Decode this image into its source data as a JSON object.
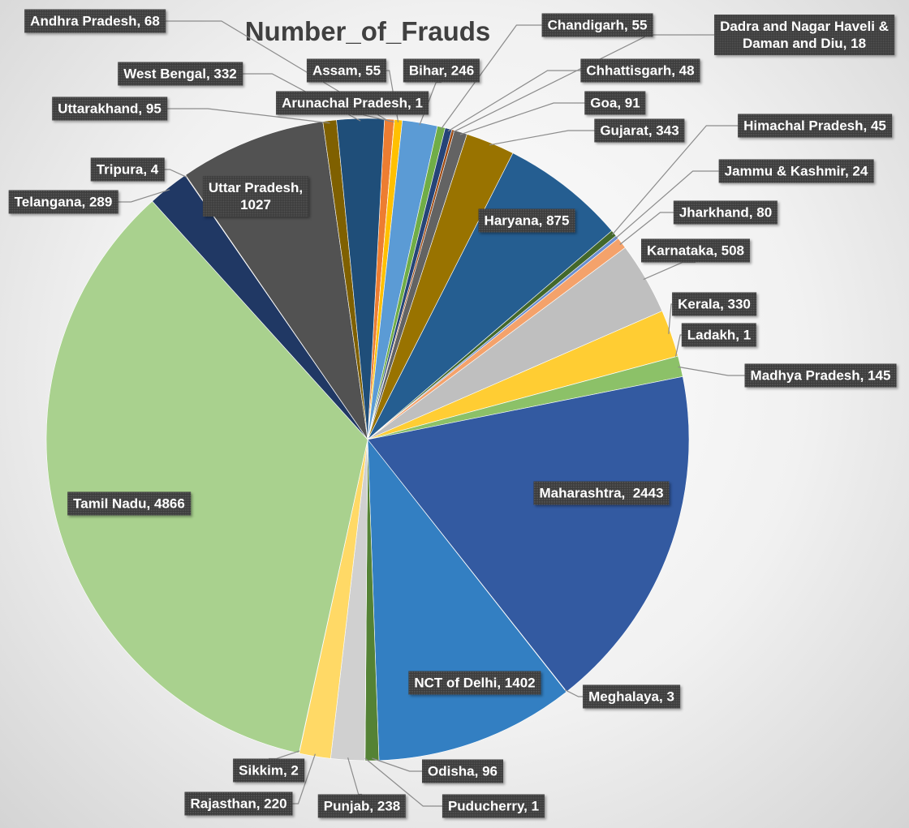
{
  "chart_data": {
    "type": "pie",
    "title": "Number_of_Frauds",
    "start_angle_deg": 3,
    "slices": [
      {
        "label": "Andhra Pradesh",
        "value": 68,
        "color": "#ED7D31"
      },
      {
        "label": "Arunachal Pradesh",
        "value": 1,
        "color": "#A5A5A5"
      },
      {
        "label": "Assam",
        "value": 55,
        "color": "#FFC000"
      },
      {
        "label": "Bihar",
        "value": 246,
        "color": "#5B9BD5"
      },
      {
        "label": "Chandigarh",
        "value": 55,
        "color": "#70AD47"
      },
      {
        "label": "Chhattisgarh",
        "value": 48,
        "color": "#264478"
      },
      {
        "label": "Dadra and Nagar Haveli & Daman and Diu",
        "value": 18,
        "color": "#9E480E"
      },
      {
        "label": "Goa",
        "value": 91,
        "color": "#636363"
      },
      {
        "label": "Gujarat",
        "value": 343,
        "color": "#997300"
      },
      {
        "label": "Haryana",
        "value": 875,
        "color": "#255E91"
      },
      {
        "label": "Himachal Pradesh",
        "value": 45,
        "color": "#43682B"
      },
      {
        "label": "Jammu & Kashmir",
        "value": 24,
        "color": "#698ED0"
      },
      {
        "label": "Jharkhand",
        "value": 80,
        "color": "#F4A26B"
      },
      {
        "label": "Karnataka",
        "value": 508,
        "color": "#BFBFBF"
      },
      {
        "label": "Kerala",
        "value": 330,
        "color": "#FFCD33"
      },
      {
        "label": "Ladakh",
        "value": 1,
        "color": "#6F9FD8"
      },
      {
        "label": "Madhya Pradesh",
        "value": 145,
        "color": "#8CC168"
      },
      {
        "label": "Maharashtra",
        "value": 2443,
        "color": "#335AA1"
      },
      {
        "label": "Meghalaya",
        "value": 3,
        "color": "#C55A11"
      },
      {
        "label": "NCT of Delhi",
        "value": 1402,
        "color": "#337FC2"
      },
      {
        "label": "Odisha",
        "value": 96,
        "color": "#548235"
      },
      {
        "label": "Puducherry",
        "value": 1,
        "color": "#7F7F7F"
      },
      {
        "label": "Punjab",
        "value": 238,
        "color": "#D0D0D0"
      },
      {
        "label": "Rajasthan",
        "value": 220,
        "color": "#FFD966"
      },
      {
        "label": "Sikkim",
        "value": 2,
        "color": "#9DC3E6"
      },
      {
        "label": "Tamil Nadu",
        "value": 4866,
        "color": "#A9D18E"
      },
      {
        "label": "Telangana",
        "value": 289,
        "color": "#203864"
      },
      {
        "label": "Tripura",
        "value": 4,
        "color": "#843C0C"
      },
      {
        "label": "Uttar Pradesh",
        "value": 1027,
        "color": "#525252"
      },
      {
        "label": "Uttarakhand",
        "value": 95,
        "color": "#7F6000"
      },
      {
        "label": "West Bengal",
        "value": 332,
        "color": "#1F4E79"
      }
    ],
    "data_labels": [
      {
        "name": "Andhra Pradesh",
        "text": "Andhra Pradesh, 68"
      },
      {
        "name": "Arunachal Pradesh",
        "text": "Arunachal Pradesh, 1"
      },
      {
        "name": "Assam",
        "text": "Assam, 55"
      },
      {
        "name": "Bihar",
        "text": "Bihar, 246"
      },
      {
        "name": "Chandigarh",
        "text": "Chandigarh, 55"
      },
      {
        "name": "Chhattisgarh",
        "text": "Chhattisgarh, 48"
      },
      {
        "name": "Dadra and Nagar Haveli & Daman and Diu",
        "text": "Dadra and Nagar Haveli &\nDaman and Diu, 18"
      },
      {
        "name": "Goa",
        "text": "Goa, 91"
      },
      {
        "name": "Gujarat",
        "text": "Gujarat, 343"
      },
      {
        "name": "Haryana",
        "text": "Haryana, 875"
      },
      {
        "name": "Himachal Pradesh",
        "text": "Himachal Pradesh, 45"
      },
      {
        "name": "Jammu & Kashmir",
        "text": "Jammu & Kashmir, 24"
      },
      {
        "name": "Jharkhand",
        "text": "Jharkhand, 80"
      },
      {
        "name": "Karnataka",
        "text": "Karnataka, 508"
      },
      {
        "name": "Kerala",
        "text": "Kerala, 330"
      },
      {
        "name": "Ladakh",
        "text": "Ladakh, 1"
      },
      {
        "name": "Madhya Pradesh",
        "text": "Madhya Pradesh, 145"
      },
      {
        "name": "Maharashtra",
        "text": "Maharashtra,  2443"
      },
      {
        "name": "Meghalaya",
        "text": "Meghalaya, 3"
      },
      {
        "name": "NCT of Delhi",
        "text": "NCT of Delhi, 1402"
      },
      {
        "name": "Odisha",
        "text": "Odisha, 96"
      },
      {
        "name": "Puducherry",
        "text": "Puducherry, 1"
      },
      {
        "name": "Punjab",
        "text": "Punjab, 238"
      },
      {
        "name": "Rajasthan",
        "text": "Rajasthan, 220"
      },
      {
        "name": "Sikkim",
        "text": "Sikkim, 2"
      },
      {
        "name": "Tamil Nadu",
        "text": "Tamil Nadu, 4866"
      },
      {
        "name": "Telangana",
        "text": "Telangana, 289"
      },
      {
        "name": "Tripura",
        "text": "Tripura, 4"
      },
      {
        "name": "Uttar Pradesh",
        "text": "Uttar Pradesh,\n1027"
      },
      {
        "name": "Uttarakhand",
        "text": "Uttarakhand, 95"
      },
      {
        "name": "West Bengal",
        "text": "West Bengal, 332"
      }
    ]
  }
}
